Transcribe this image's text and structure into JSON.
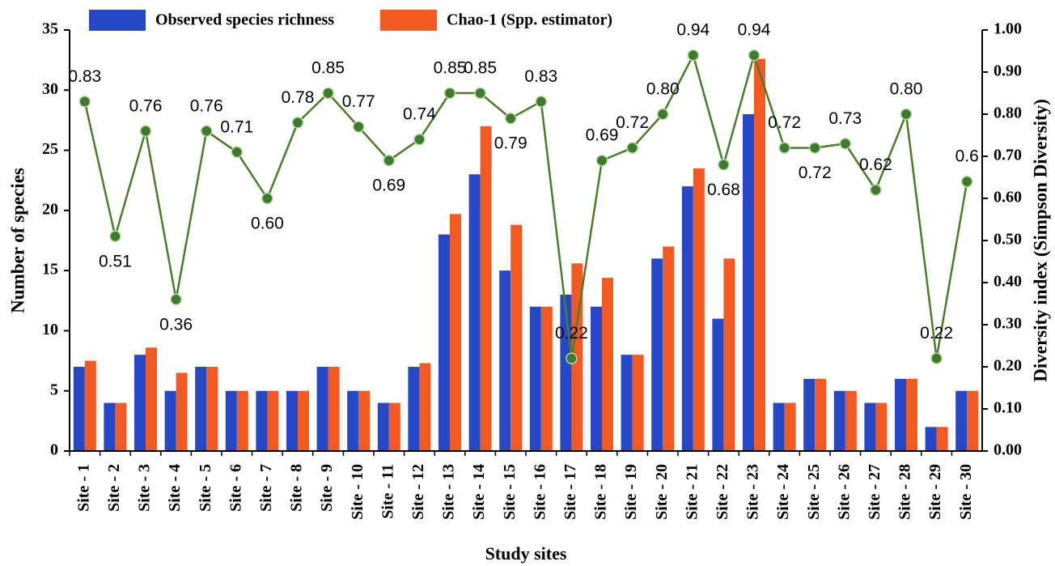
{
  "chart_data": {
    "type": "bar",
    "xlabel": "Study sites",
    "ylabel": "Number of species",
    "y2label": "Diversity index (Simpson Diversity)",
    "categories": [
      "Site - 1",
      "Site - 2",
      "Site - 3",
      "Site - 4",
      "Site - 5",
      "Site - 6",
      "Site - 7",
      "Site - 8",
      "Site - 9",
      "Site - 10",
      "Site - 11",
      "Site - 12",
      "Site - 13",
      "Site - 14",
      "Site - 15",
      "Site - 16",
      "Site - 17",
      "Site - 18",
      "Site - 19",
      "Site - 20",
      "Site - 21",
      "Site - 22",
      "Site - 23",
      "Site - 24",
      "Site - 25",
      "Site - 26",
      "Site - 27",
      "Site - 28",
      "Site - 29",
      "Site - 30"
    ],
    "series": [
      {
        "name": "Observed species richness",
        "color": "#2448c8",
        "values": [
          7,
          4,
          8,
          5,
          7,
          5,
          5,
          5,
          7,
          5,
          4,
          7,
          18,
          23,
          15,
          12,
          13,
          12,
          8,
          16,
          22,
          11,
          28,
          4,
          6,
          5,
          4,
          6,
          2,
          5
        ]
      },
      {
        "name": "Chao-1 (Spp. estimator)",
        "color": "#f25a22",
        "values": [
          7.5,
          4,
          8.6,
          6.5,
          7,
          5,
          5,
          5,
          7,
          5,
          4,
          7.3,
          19.7,
          27,
          18.8,
          12,
          15.6,
          14.4,
          8,
          17,
          23.5,
          16,
          32.6,
          4,
          6,
          5,
          4,
          6,
          2,
          5
        ]
      },
      {
        "type": "line",
        "axis": "y2",
        "color": "#4a7d2a",
        "values": [
          0.83,
          0.51,
          0.76,
          0.36,
          0.76,
          0.71,
          0.6,
          0.78,
          0.85,
          0.77,
          0.69,
          0.74,
          0.85,
          0.85,
          0.79,
          0.83,
          0.22,
          0.69,
          0.72,
          0.8,
          0.94,
          0.68,
          0.94,
          0.72,
          0.72,
          0.73,
          0.62,
          0.8,
          0.22,
          0.64
        ],
        "value_labels": [
          "0.83",
          "0.51",
          "0.76",
          "0.36",
          "0.76",
          "0.71",
          "0.60",
          "0.78",
          "0.85",
          "0.77",
          "0.69",
          "0.74",
          "0.85",
          "0.85",
          "0.79",
          "0.83",
          "0.22",
          "0.69",
          "0.72",
          "0.80",
          "0.94",
          "0.68",
          "0.94",
          "0.72",
          "0.72",
          "0.73",
          "0.62",
          "0.80",
          "0.22",
          "0.6"
        ]
      }
    ],
    "ylim": [
      0,
      35
    ],
    "yticks": [
      0,
      5,
      10,
      15,
      20,
      25,
      30,
      35
    ],
    "y2lim": [
      0,
      1
    ],
    "y2ticks": [
      {
        "value": 0,
        "label": "0.00"
      },
      {
        "value": 0.1,
        "label": "0.10"
      },
      {
        "value": 0.2,
        "label": "0.20"
      },
      {
        "value": 0.3,
        "label": "0.30"
      },
      {
        "value": 0.4,
        "label": "0.40"
      },
      {
        "value": 0.5,
        "label": "0.50"
      },
      {
        "value": 0.6,
        "label": "0.60"
      },
      {
        "value": 0.7,
        "label": "0.70"
      },
      {
        "value": 0.8,
        "label": "0.80"
      },
      {
        "value": 0.9,
        "label": "0.90"
      },
      {
        "value": 1,
        "label": "1.00"
      }
    ]
  }
}
